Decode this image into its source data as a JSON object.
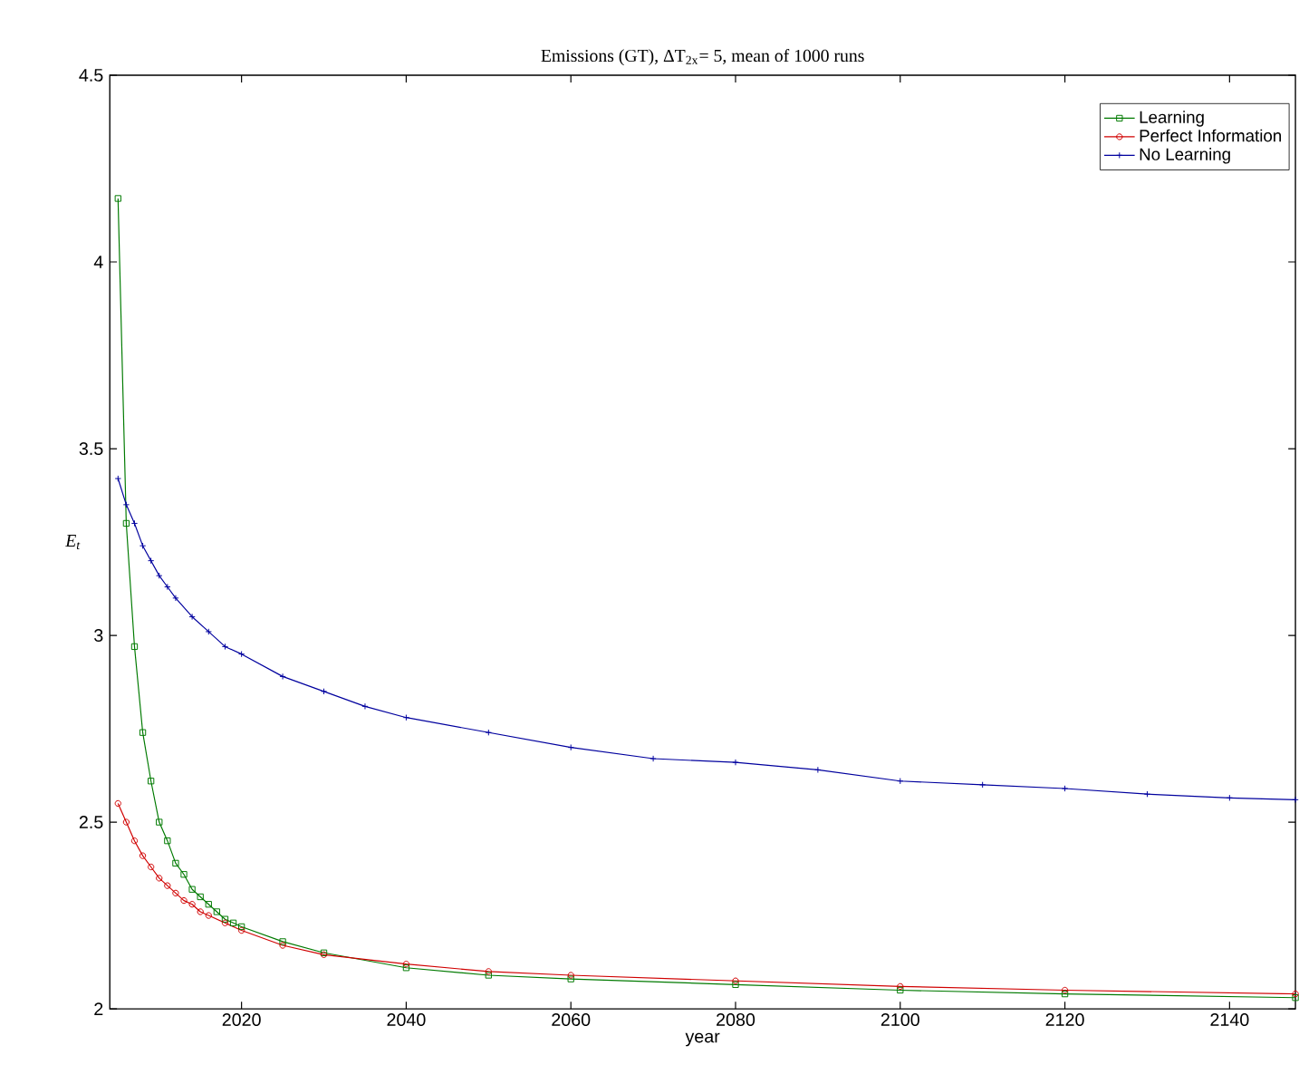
{
  "chart_data": {
    "type": "line",
    "title": "Emissions (GT), ΔT$_{2x}$= 5, mean of 1000 runs",
    "xlabel": "year",
    "ylabel": "E$_{t}$",
    "xlim": [
      2004,
      2148
    ],
    "ylim": [
      2,
      4.5
    ],
    "xticks": [
      2020,
      2040,
      2060,
      2080,
      2100,
      2120,
      2140
    ],
    "yticks": [
      2,
      2.5,
      3,
      3.5,
      4,
      4.5
    ],
    "grid": false,
    "legend": "top right",
    "series": [
      {
        "name": "Learning",
        "color": "#007a00",
        "marker": "square",
        "x": [
          2005,
          2006,
          2007,
          2008,
          2009,
          2010,
          2011,
          2012,
          2013,
          2014,
          2015,
          2016,
          2017,
          2018,
          2019,
          2020,
          2025,
          2030,
          2040,
          2050,
          2060,
          2080,
          2100,
          2120,
          2148
        ],
        "values": [
          4.17,
          3.3,
          2.97,
          2.74,
          2.61,
          2.5,
          2.45,
          2.39,
          2.36,
          2.32,
          2.3,
          2.28,
          2.26,
          2.24,
          2.23,
          2.22,
          2.18,
          2.15,
          2.11,
          2.09,
          2.08,
          2.065,
          2.05,
          2.04,
          2.03
        ]
      },
      {
        "name": "Perfect Information",
        "color": "#d00000",
        "marker": "circle",
        "x": [
          2005,
          2006,
          2007,
          2008,
          2009,
          2010,
          2011,
          2012,
          2013,
          2014,
          2015,
          2016,
          2018,
          2020,
          2025,
          2030,
          2040,
          2050,
          2060,
          2080,
          2100,
          2120,
          2148
        ],
        "values": [
          2.55,
          2.5,
          2.45,
          2.41,
          2.38,
          2.35,
          2.33,
          2.31,
          2.29,
          2.28,
          2.26,
          2.25,
          2.23,
          2.21,
          2.17,
          2.145,
          2.12,
          2.1,
          2.09,
          2.075,
          2.06,
          2.05,
          2.04
        ]
      },
      {
        "name": "No Learning",
        "color": "#00009e",
        "marker": "cross",
        "x": [
          2005,
          2006,
          2007,
          2008,
          2009,
          2010,
          2011,
          2012,
          2014,
          2016,
          2018,
          2020,
          2025,
          2030,
          2035,
          2040,
          2050,
          2060,
          2070,
          2080,
          2090,
          2100,
          2110,
          2120,
          2130,
          2140,
          2148
        ],
        "values": [
          3.42,
          3.35,
          3.3,
          3.24,
          3.2,
          3.16,
          3.13,
          3.1,
          3.05,
          3.01,
          2.97,
          2.95,
          2.89,
          2.85,
          2.81,
          2.78,
          2.74,
          2.7,
          2.67,
          2.66,
          2.64,
          2.61,
          2.6,
          2.59,
          2.575,
          2.565,
          2.56
        ]
      }
    ]
  }
}
